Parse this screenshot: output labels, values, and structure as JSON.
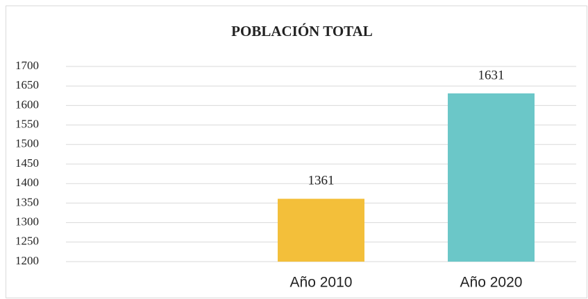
{
  "chart_data": {
    "type": "bar",
    "title": "POBLACIÓN TOTAL",
    "categories": [
      null,
      "Año 2010",
      "Año 2020"
    ],
    "values": [
      null,
      1361,
      1631
    ],
    "colors": [
      null,
      "#f3bf3a",
      "#6bc7c8"
    ],
    "ylim": [
      1200,
      1700
    ],
    "yticks": [
      1200,
      1250,
      1300,
      1350,
      1400,
      1450,
      1500,
      1550,
      1600,
      1650,
      1700
    ],
    "grid": true
  }
}
